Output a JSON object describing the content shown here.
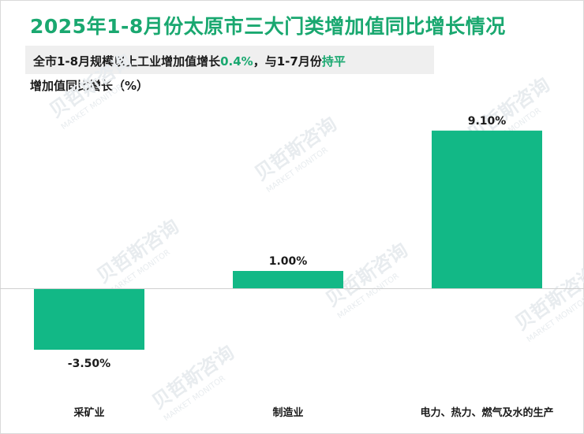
{
  "title": "2025年1-8月份太原市三大门类增加值同比增长情况",
  "subtitle": {
    "prefix": "全市1-8月规模以上工业增加值增长",
    "value": "0.4%",
    "middle": "，与1-7月份",
    "status": "持平"
  },
  "ylabel": "增加值同比增长（%）",
  "colors": {
    "bar": "#12b886",
    "accent": "#1aa870"
  },
  "watermark": {
    "cn": "贝哲斯咨询",
    "en": "MARKET MONITOR"
  },
  "chart_data": {
    "type": "bar",
    "categories": [
      "采矿业",
      "制造业",
      "电力、热力、燃气及水的生产"
    ],
    "values": [
      -3.5,
      1.0,
      9.1
    ],
    "data_labels": [
      "-3.50%",
      "1.00%",
      "9.10%"
    ],
    "title": "2025年1-8月份太原市三大门类增加值同比增长情况",
    "ylabel": "增加值同比增长（%）",
    "ylim": [
      -3.5,
      9.1
    ],
    "grid": false,
    "legend": false
  }
}
